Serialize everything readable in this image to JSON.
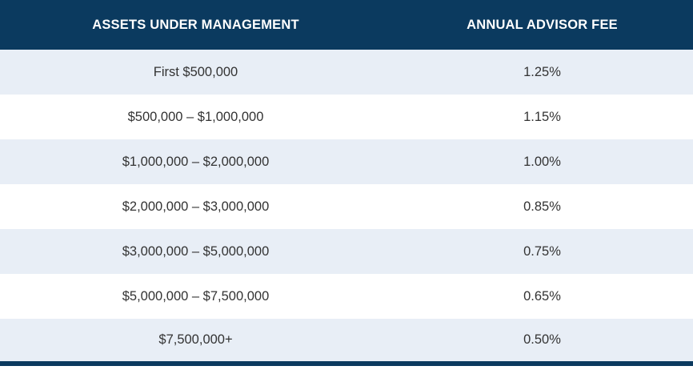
{
  "table": {
    "headers": [
      "ASSETS UNDER MANAGEMENT",
      "ANNUAL ADVISOR FEE"
    ],
    "rows": [
      {
        "assets": "First $500,000",
        "fee": "1.25%"
      },
      {
        "assets": "$500,000 – $1,000,000",
        "fee": "1.15%"
      },
      {
        "assets": "$1,000,000 – $2,000,000",
        "fee": "1.00%"
      },
      {
        "assets": "$2,000,000 – $3,000,000",
        "fee": "0.85%"
      },
      {
        "assets": "$3,000,000 – $5,000,000",
        "fee": "0.75%"
      },
      {
        "assets": "$5,000,000 – $7,500,000",
        "fee": "0.65%"
      },
      {
        "assets": "$7,500,000+",
        "fee": "0.50%"
      }
    ]
  },
  "colors": {
    "header_bg": "#0b3a5f",
    "header_text": "#ffffff",
    "row_shaded": "#e8eef6",
    "row_plain": "#ffffff",
    "cell_text": "#333333"
  }
}
